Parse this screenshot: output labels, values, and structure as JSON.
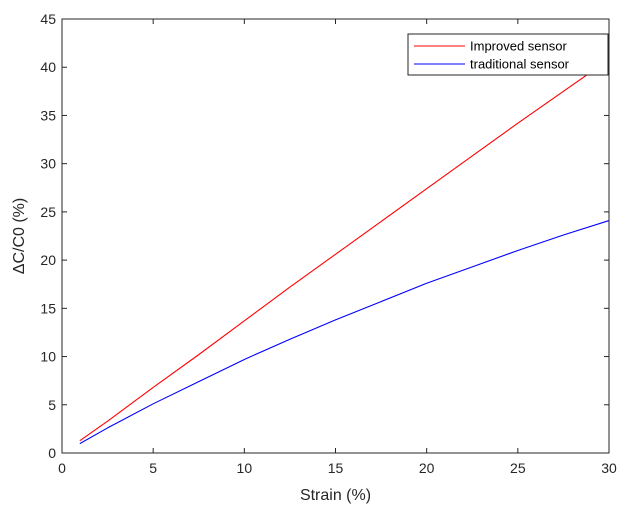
{
  "chart_data": {
    "type": "line",
    "title": "",
    "xlabel": "Strain (%)",
    "ylabel": "ΔC/C0  (%)",
    "xlim": [
      0,
      30
    ],
    "ylim": [
      0,
      45
    ],
    "xticks": [
      0,
      5,
      10,
      15,
      20,
      25,
      30
    ],
    "yticks": [
      0,
      5,
      10,
      15,
      20,
      25,
      30,
      35,
      40,
      45
    ],
    "grid": false,
    "legend_position": "top-right",
    "series": [
      {
        "name": "Improved sensor",
        "color": "#ff0000",
        "x": [
          1,
          2.5,
          5,
          7.5,
          10,
          12.5,
          15,
          17.5,
          20,
          22.5,
          25,
          27.5,
          30
        ],
        "y": [
          1.3,
          3.3,
          6.8,
          10.2,
          13.7,
          17.2,
          20.6,
          24.0,
          27.4,
          30.8,
          34.2,
          37.5,
          40.8
        ]
      },
      {
        "name": "traditional sensor",
        "color": "#0000ff",
        "x": [
          1,
          2.5,
          5,
          7.5,
          10,
          12.5,
          15,
          17.5,
          20,
          22.5,
          25,
          27.5,
          30
        ],
        "y": [
          1.0,
          2.6,
          5.1,
          7.4,
          9.7,
          11.8,
          13.8,
          15.7,
          17.6,
          19.3,
          21.0,
          22.6,
          24.1
        ]
      }
    ]
  }
}
